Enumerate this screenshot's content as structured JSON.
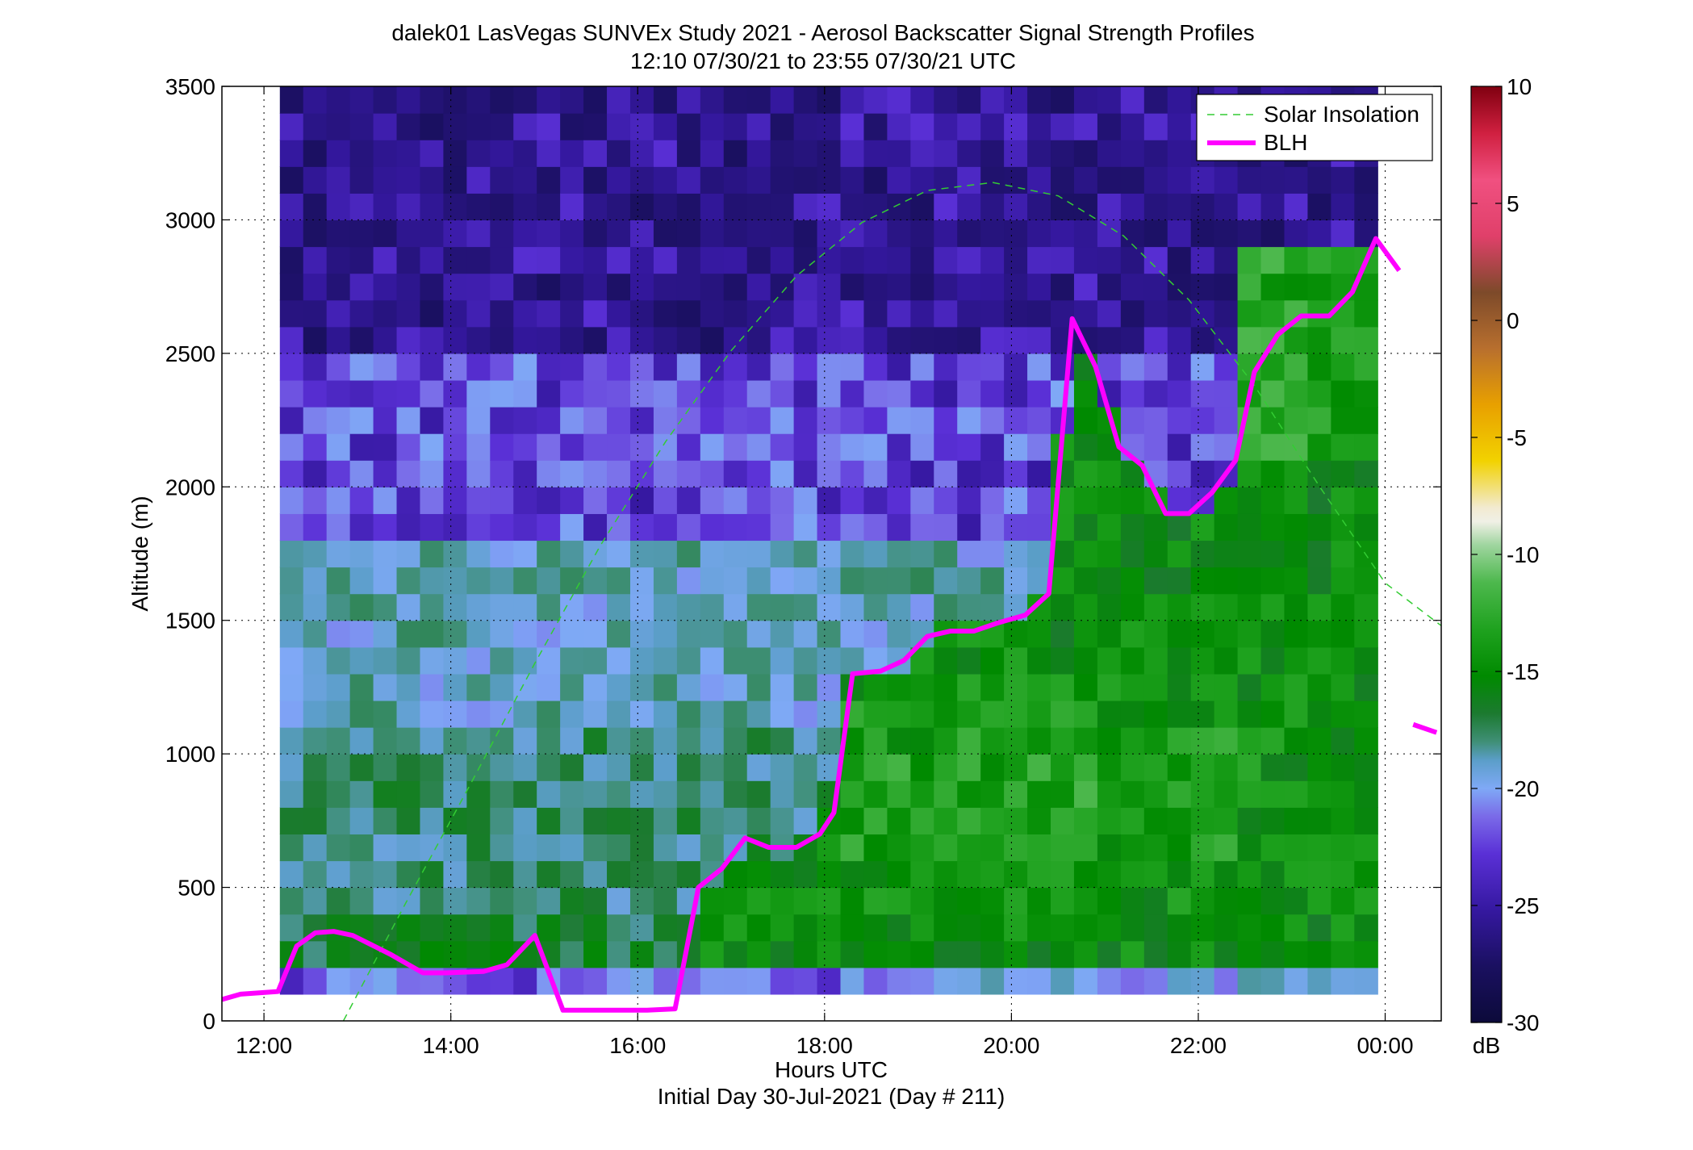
{
  "chart_data": {
    "type": "heatmap",
    "title": "dalek01 LasVegas SUNVEx Study 2021 - Aerosol Backscatter Signal Strength Profiles",
    "subtitle": "12:10 07/30/21 to 23:55 07/30/21  UTC",
    "xlabel": "Hours UTC",
    "xlabel2": "Initial Day 30-Jul-2021 (Day # 211)",
    "ylabel": "Altitude (m)",
    "xlim": [
      11.55,
      24.6
    ],
    "ylim": [
      0,
      3500
    ],
    "x_ticks": [
      12,
      14,
      16,
      18,
      20,
      22,
      24
    ],
    "x_tick_labels": [
      "12:00",
      "14:00",
      "16:00",
      "18:00",
      "20:00",
      "22:00",
      "00:00"
    ],
    "y_ticks": [
      0,
      500,
      1000,
      1500,
      2000,
      2500,
      3000,
      3500
    ],
    "y_tick_labels": [
      "0",
      "500",
      "1000",
      "1500",
      "2000",
      "2500",
      "3000",
      "3500"
    ],
    "grid": true,
    "data_time_range": [
      12.17,
      23.92
    ],
    "colorbar": {
      "label": "dB",
      "range": [
        -30,
        10
      ],
      "ticks": [
        10,
        5,
        0,
        -5,
        -10,
        -15,
        -20,
        -25,
        -30
      ],
      "tick_labels": [
        "10",
        "5",
        "0",
        "-5",
        "-10",
        "-15",
        "-20",
        "-25",
        "-30"
      ]
    },
    "legend": {
      "placement": "top-right",
      "entries": [
        "Solar Insolation",
        "BLH"
      ]
    },
    "series": [
      {
        "name": "BLH",
        "color": "#ff00ff",
        "x": [
          11.55,
          11.75,
          11.95,
          12.15,
          12.35,
          12.55,
          12.75,
          12.95,
          13.15,
          13.35,
          13.7,
          13.95,
          14.35,
          14.6,
          14.9,
          15.2,
          15.5,
          15.8,
          16.1,
          16.4,
          16.65,
          16.9,
          17.15,
          17.4,
          17.7,
          17.95,
          18.1,
          18.3,
          18.6,
          18.85,
          19.1,
          19.35,
          19.6,
          19.85,
          20.15,
          20.4,
          20.65,
          20.9,
          21.15,
          21.4,
          21.65,
          21.9,
          22.15,
          22.4,
          22.6,
          22.85,
          23.1,
          23.4,
          23.65,
          23.9,
          24.15
        ],
        "y": [
          80,
          100,
          105,
          110,
          280,
          330,
          335,
          320,
          285,
          250,
          180,
          180,
          185,
          210,
          320,
          40,
          40,
          40,
          40,
          45,
          500,
          570,
          685,
          650,
          650,
          700,
          780,
          1300,
          1310,
          1350,
          1440,
          1460,
          1460,
          1490,
          1520,
          1600,
          2630,
          2450,
          2150,
          2080,
          1900,
          1900,
          1980,
          2100,
          2430,
          2570,
          2640,
          2640,
          2730,
          2930,
          2810
        ]
      },
      {
        "name": "BLH",
        "color": "#ff00ff",
        "x": [
          24.3,
          24.55
        ],
        "y": [
          1110,
          1080
        ]
      },
      {
        "name": "Solar Insolation",
        "color": "#33cc33",
        "style": "dashed",
        "x": [
          12.85,
          13.5,
          14.2,
          14.9,
          15.6,
          16.3,
          17.0,
          17.7,
          18.4,
          19.1,
          19.8,
          20.5,
          21.2,
          21.9,
          22.6,
          23.3,
          24.0,
          24.6
        ],
        "y": [
          0,
          430,
          880,
          1340,
          1780,
          2170,
          2510,
          2790,
          2990,
          3110,
          3140,
          3090,
          2940,
          2700,
          2380,
          2000,
          1640,
          1480
        ]
      }
    ],
    "heatmap_rows": [
      {
        "altitude_range": [
          2500,
          3500
        ],
        "dominant_range_db": [
          -28,
          -24
        ],
        "description_values": [
          -27,
          -26,
          -25
        ]
      },
      {
        "altitude_range": [
          1700,
          2500
        ],
        "dominant_range_db": [
          -26,
          -22
        ],
        "description_values": [
          -25,
          -24,
          -23
        ]
      },
      {
        "altitude_range": [
          1000,
          1700
        ],
        "dominant_range_db": [
          -23,
          -19
        ],
        "description_values": [
          -22,
          -21,
          -20
        ]
      },
      {
        "altitude_range": [
          100,
          1000
        ],
        "dominant_range_db": [
          -22,
          -15
        ],
        "description_values": [
          -21,
          -19,
          -17
        ]
      }
    ]
  }
}
